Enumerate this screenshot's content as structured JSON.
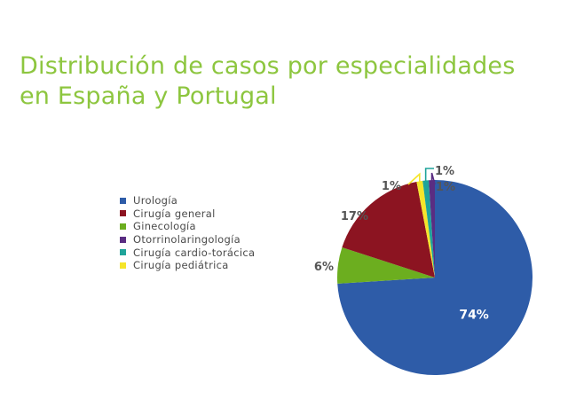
{
  "chart_data": {
    "type": "pie",
    "title_lines": [
      "Distribución de casos por especialidades",
      "en España y Portugal"
    ],
    "slices": [
      {
        "name": "Urología",
        "value": 74,
        "label": "74%",
        "color": "#2e5ca8"
      },
      {
        "name": "Cirugía general",
        "value": 17,
        "label": "17%",
        "color": "#8c1421"
      },
      {
        "name": "Ginecología",
        "value": 6,
        "label": "6%",
        "color": "#6cae1f"
      },
      {
        "name": "Otorrinolaringología",
        "value": 1,
        "label": "1%",
        "color": "#5a2d82"
      },
      {
        "name": "Cirugía cardio-torácica",
        "value": 1,
        "label": "1%",
        "color": "#1fa49a"
      },
      {
        "name": "Cirugía pediátrica",
        "value": 1,
        "label": "1%",
        "color": "#f5e52a"
      }
    ],
    "pie_order": [
      "Urología",
      "Ginecología",
      "Cirugía general",
      "Cirugía pediátrica",
      "Cirugía cardio-torácica",
      "Otorrinolaringología"
    ],
    "legend_position": "left"
  }
}
